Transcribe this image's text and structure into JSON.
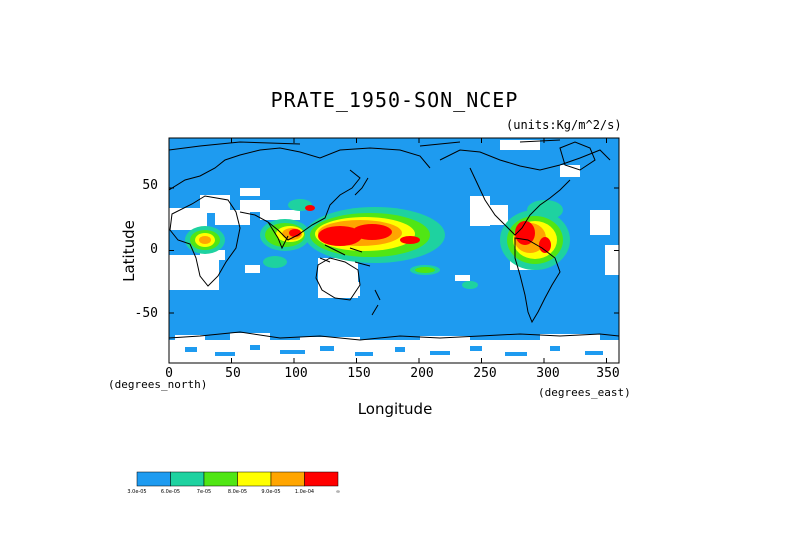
{
  "title": "PRATE_1950-SON_NCEP",
  "units": "(units:Kg/m^2/s)",
  "axes": {
    "ylabel": "Latitude",
    "xlabel": "Longitude",
    "x_min_caption": "(degrees_north)",
    "x_max_caption": "(degrees_east)",
    "y_ticks": [
      "50",
      "0",
      "-50"
    ],
    "x_ticks": [
      "0",
      "50",
      "100",
      "150",
      "200",
      "250",
      "300",
      "350"
    ]
  },
  "colors": {
    "ocean_base": "#1e9bf0",
    "teal": "#1ed2a0",
    "green": "#50e614",
    "yellow": "#ffff00",
    "orange": "#ffa500",
    "red": "#ff0000",
    "no_data": "#ffffff"
  },
  "legend": {
    "swatches": [
      "#1e9bf0",
      "#1ed2a0",
      "#50e614",
      "#ffff00",
      "#ffa500",
      "#ff0000"
    ],
    "labels": [
      "3.0e-05",
      "6.0e-05",
      "7e-05",
      "8.0e-05",
      "9.0e-05",
      "1.0e-04",
      "∞"
    ]
  }
}
